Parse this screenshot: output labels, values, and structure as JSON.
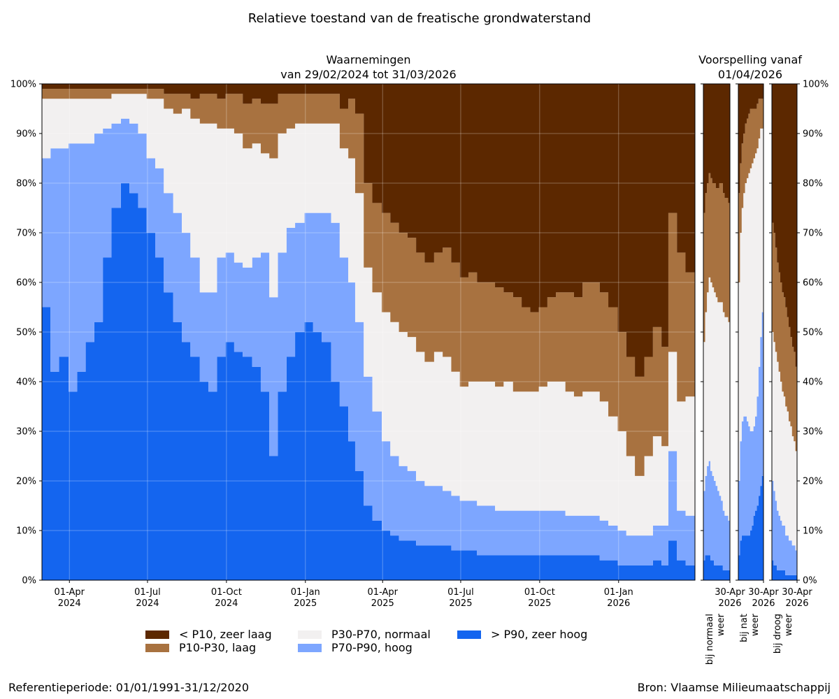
{
  "title": "Relatieve toestand van de freatische grondwaterstand",
  "colors": {
    "zeer_laag": "#5c2800",
    "laag": "#a87240",
    "normaal": "#f2f0f0",
    "hoog": "#7da6ff",
    "zeer_hoog": "#1465ef"
  },
  "chart_data": [
    {
      "type": "area",
      "title": "Waarnemingen\nvan 29/02/2024 tot 31/03/2026",
      "title_lines": [
        "Waarnemingen",
        "van 29/02/2024 tot 31/03/2026"
      ],
      "x_range": [
        "2024-02-29",
        "2026-03-31"
      ],
      "x_ticks": [
        {
          "date": "2024-04-01",
          "label": [
            "01-Apr",
            "2024"
          ]
        },
        {
          "date": "2024-07-01",
          "label": [
            "01-Jul",
            "2024"
          ]
        },
        {
          "date": "2024-10-01",
          "label": [
            "01-Oct",
            "2024"
          ]
        },
        {
          "date": "2025-01-01",
          "label": [
            "01-Jan",
            "2025"
          ]
        },
        {
          "date": "2025-04-01",
          "label": [
            "01-Apr",
            "2025"
          ]
        },
        {
          "date": "2025-07-01",
          "label": [
            "01-Jul",
            "2025"
          ]
        },
        {
          "date": "2025-10-01",
          "label": [
            "01-Oct",
            "2025"
          ]
        },
        {
          "date": "2026-01-01",
          "label": [
            "01-Jan",
            "2026"
          ]
        }
      ],
      "y_ticks": [
        "0%",
        "10%",
        "20%",
        "30%",
        "40%",
        "50%",
        "60%",
        "70%",
        "80%",
        "90%",
        "100%"
      ],
      "ylim": [
        0,
        100
      ],
      "grid": true,
      "stacked": true,
      "x": [
        "2024-02-29",
        "2024-03-10",
        "2024-03-20",
        "2024-03-31",
        "2024-04-10",
        "2024-04-20",
        "2024-04-30",
        "2024-05-10",
        "2024-05-20",
        "2024-05-31",
        "2024-06-10",
        "2024-06-20",
        "2024-06-30",
        "2024-07-10",
        "2024-07-20",
        "2024-07-31",
        "2024-08-10",
        "2024-08-20",
        "2024-08-31",
        "2024-09-10",
        "2024-09-20",
        "2024-09-30",
        "2024-10-10",
        "2024-10-20",
        "2024-10-31",
        "2024-11-10",
        "2024-11-20",
        "2024-11-30",
        "2024-12-10",
        "2024-12-20",
        "2024-12-31",
        "2025-01-10",
        "2025-01-20",
        "2025-01-31",
        "2025-02-10",
        "2025-02-20",
        "2025-02-28",
        "2025-03-10",
        "2025-03-20",
        "2025-03-31",
        "2025-04-10",
        "2025-04-20",
        "2025-04-30",
        "2025-05-10",
        "2025-05-20",
        "2025-05-31",
        "2025-06-10",
        "2025-06-20",
        "2025-06-30",
        "2025-07-10",
        "2025-07-20",
        "2025-07-31",
        "2025-08-10",
        "2025-08-20",
        "2025-08-31",
        "2025-09-10",
        "2025-09-20",
        "2025-09-30",
        "2025-10-10",
        "2025-10-20",
        "2025-10-31",
        "2025-11-10",
        "2025-11-20",
        "2025-11-30",
        "2025-12-10",
        "2025-12-20",
        "2025-12-31",
        "2026-01-10",
        "2026-01-20",
        "2026-01-31",
        "2026-02-10",
        "2026-02-20",
        "2026-02-28",
        "2026-03-10",
        "2026-03-20",
        "2026-03-31"
      ],
      "series": [
        {
          "name": "> P90, zeer hoog",
          "color_key": "zeer_hoog",
          "values": [
            55,
            42,
            45,
            38,
            42,
            48,
            52,
            65,
            75,
            80,
            78,
            75,
            70,
            65,
            58,
            52,
            48,
            45,
            40,
            38,
            45,
            48,
            46,
            45,
            43,
            38,
            25,
            38,
            45,
            50,
            52,
            50,
            48,
            40,
            35,
            28,
            22,
            15,
            12,
            10,
            9,
            8,
            8,
            7,
            7,
            7,
            7,
            6,
            6,
            6,
            5,
            5,
            5,
            5,
            5,
            5,
            5,
            5,
            5,
            5,
            5,
            5,
            5,
            5,
            4,
            4,
            3,
            3,
            3,
            3,
            4,
            3,
            8,
            4,
            3,
            3
          ]
        },
        {
          "name": "P70-P90, hoog",
          "color_key": "hoog",
          "values": [
            30,
            45,
            42,
            50,
            46,
            40,
            38,
            26,
            17,
            13,
            14,
            15,
            15,
            18,
            20,
            22,
            22,
            20,
            18,
            20,
            20,
            18,
            18,
            18,
            22,
            28,
            32,
            28,
            26,
            22,
            22,
            24,
            26,
            32,
            30,
            32,
            30,
            26,
            22,
            18,
            16,
            15,
            14,
            13,
            12,
            12,
            11,
            11,
            10,
            10,
            10,
            10,
            9,
            9,
            9,
            9,
            9,
            9,
            9,
            9,
            8,
            8,
            8,
            8,
            8,
            7,
            7,
            6,
            6,
            6,
            7,
            8,
            18,
            10,
            10,
            9
          ]
        },
        {
          "name": "P30-P70, normaal",
          "color_key": "normaal",
          "values": [
            12,
            10,
            10,
            9,
            9,
            9,
            7,
            6,
            6,
            5,
            6,
            8,
            12,
            14,
            17,
            20,
            25,
            28,
            34,
            34,
            26,
            25,
            26,
            24,
            23,
            20,
            28,
            24,
            20,
            20,
            18,
            18,
            18,
            20,
            22,
            25,
            26,
            22,
            24,
            26,
            27,
            27,
            27,
            26,
            25,
            27,
            27,
            25,
            23,
            24,
            25,
            25,
            25,
            26,
            24,
            24,
            24,
            25,
            26,
            26,
            25,
            24,
            25,
            25,
            24,
            22,
            20,
            16,
            12,
            16,
            18,
            16,
            20,
            22,
            24,
            28
          ]
        },
        {
          "name": "P10-P30, laag",
          "color_key": "laag",
          "values": [
            2,
            2,
            2,
            2,
            2,
            2,
            2,
            2,
            1,
            1,
            1,
            1,
            2,
            2,
            3,
            4,
            3,
            4,
            6,
            6,
            6,
            7,
            8,
            9,
            9,
            10,
            11,
            8,
            7,
            6,
            6,
            6,
            6,
            6,
            8,
            12,
            16,
            17,
            18,
            20,
            20,
            20,
            20,
            20,
            20,
            20,
            22,
            22,
            22,
            22,
            20,
            20,
            20,
            18,
            19,
            17,
            16,
            16,
            17,
            18,
            20,
            20,
            22,
            22,
            22,
            22,
            20,
            20,
            20,
            20,
            22,
            20,
            28,
            30,
            25,
            18
          ]
        },
        {
          "name": "< P10, zeer laag",
          "color_key": "zeer_laag",
          "values": [
            1,
            1,
            1,
            1,
            1,
            1,
            1,
            1,
            1,
            1,
            1,
            1,
            1,
            1,
            2,
            2,
            2,
            3,
            2,
            2,
            3,
            2,
            2,
            4,
            3,
            4,
            4,
            2,
            2,
            2,
            2,
            2,
            2,
            2,
            5,
            3,
            6,
            20,
            24,
            26,
            28,
            30,
            31,
            34,
            36,
            34,
            33,
            36,
            39,
            38,
            40,
            40,
            41,
            42,
            43,
            45,
            46,
            45,
            43,
            42,
            42,
            43,
            40,
            40,
            42,
            45,
            50,
            55,
            59,
            55,
            49,
            53,
            26,
            34,
            38,
            42
          ]
        }
      ]
    },
    {
      "type": "area",
      "title": "Voorspelling vanaf\n01/04/2026",
      "title_lines": [
        "Voorspelling vanaf",
        "01/04/2026"
      ],
      "x_tick_label": [
        "30-Apr",
        "2026"
      ],
      "ylim": [
        0,
        100
      ],
      "stacked": true,
      "scenarios": [
        {
          "name": "bij normaal weer",
          "name_lines": [
            "bij normaal",
            "weer"
          ],
          "x_days": [
            0,
            2,
            4,
            6,
            8,
            10,
            12,
            14,
            16,
            18,
            20,
            22,
            24,
            26,
            28,
            30
          ],
          "series": [
            {
              "name": "> P90, zeer hoog",
              "color_key": "zeer_hoog",
              "values": [
                4,
                5,
                5,
                5,
                4,
                4,
                3,
                3,
                3,
                3,
                3,
                2,
                2,
                2,
                2,
                1
              ]
            },
            {
              "name": "P70-P90, hoog",
              "color_key": "hoog",
              "values": [
                14,
                16,
                18,
                19,
                18,
                17,
                17,
                16,
                15,
                14,
                13,
                12,
                11,
                11,
                10,
                10
              ]
            },
            {
              "name": "P30-P70, normaal",
              "color_key": "normaal",
              "values": [
                30,
                33,
                35,
                37,
                38,
                38,
                38,
                38,
                38,
                39,
                40,
                40,
                40,
                40,
                40,
                40
              ]
            },
            {
              "name": "P10-P30, laag",
              "color_key": "laag",
              "values": [
                26,
                24,
                22,
                21,
                21,
                21,
                22,
                22,
                23,
                24,
                24,
                24,
                24,
                24,
                24,
                24
              ]
            },
            {
              "name": "< P10, zeer laag",
              "color_key": "zeer_laag",
              "values": [
                26,
                22,
                20,
                18,
                19,
                20,
                20,
                21,
                21,
                20,
                20,
                22,
                23,
                23,
                24,
                25
              ]
            }
          ]
        },
        {
          "name": "bij nat weer",
          "name_lines": [
            "bij nat",
            "weer"
          ],
          "x_days": [
            0,
            2,
            4,
            6,
            8,
            10,
            12,
            14,
            16,
            18,
            20,
            22,
            24,
            26,
            28,
            30
          ],
          "series": [
            {
              "name": "> P90, zeer hoog",
              "color_key": "zeer_hoog",
              "values": [
                5,
                8,
                9,
                9,
                9,
                9,
                9,
                10,
                11,
                13,
                14,
                15,
                17,
                19,
                21,
                24
              ]
            },
            {
              "name": "P70-P90, hoog",
              "color_key": "hoog",
              "values": [
                15,
                20,
                23,
                24,
                24,
                23,
                22,
                20,
                19,
                18,
                19,
                22,
                26,
                30,
                33,
                32
              ]
            },
            {
              "name": "P30-P70, normaal",
              "color_key": "normaal",
              "values": [
                40,
                42,
                43,
                45,
                47,
                49,
                51,
                53,
                54,
                54,
                53,
                50,
                46,
                42,
                37,
                36
              ]
            },
            {
              "name": "P10-P30, laag",
              "color_key": "laag",
              "values": [
                18,
                14,
                13,
                12,
                12,
                12,
                12,
                12,
                11,
                10,
                9,
                9,
                8,
                6,
                6,
                5
              ]
            },
            {
              "name": "< P10, zeer laag",
              "color_key": "zeer_laag",
              "values": [
                22,
                16,
                12,
                10,
                8,
                7,
                6,
                5,
                5,
                5,
                5,
                4,
                3,
                3,
                3,
                3
              ]
            }
          ]
        },
        {
          "name": "bij droog weer",
          "name_lines": [
            "bij droog",
            "weer"
          ],
          "x_days": [
            0,
            2,
            4,
            6,
            8,
            10,
            12,
            14,
            16,
            18,
            20,
            22,
            24,
            26,
            28,
            30
          ],
          "series": [
            {
              "name": "> P90, zeer hoog",
              "color_key": "zeer_hoog",
              "values": [
                4,
                3,
                3,
                2,
                2,
                2,
                2,
                2,
                1,
                1,
                1,
                1,
                1,
                1,
                1,
                1
              ]
            },
            {
              "name": "P70-P90, hoog",
              "color_key": "hoog",
              "values": [
                16,
                15,
                13,
                12,
                11,
                10,
                9,
                9,
                8,
                8,
                7,
                7,
                6,
                6,
                5,
                5
              ]
            },
            {
              "name": "P30-P70, normaal",
              "color_key": "normaal",
              "values": [
                30,
                30,
                30,
                30,
                29,
                28,
                27,
                26,
                26,
                25,
                24,
                23,
                22,
                21,
                20,
                20
              ]
            },
            {
              "name": "P10-P30, laag",
              "color_key": "laag",
              "values": [
                22,
                22,
                21,
                20,
                20,
                20,
                20,
                20,
                20,
                19,
                19,
                18,
                18,
                18,
                17,
                17
              ]
            },
            {
              "name": "< P10, zeer laag",
              "color_key": "zeer_laag",
              "values": [
                28,
                30,
                33,
                36,
                38,
                40,
                42,
                43,
                45,
                47,
                49,
                51,
                53,
                54,
                57,
                57
              ]
            }
          ]
        }
      ]
    }
  ],
  "legend": {
    "placement": "bottom",
    "items": [
      {
        "label": "< P10, zeer laag",
        "color_key": "zeer_laag"
      },
      {
        "label": "P10-P30, laag",
        "color_key": "laag"
      },
      {
        "label": "P30-P70, normaal",
        "color_key": "normaal"
      },
      {
        "label": "P70-P90, hoog",
        "color_key": "hoog"
      },
      {
        "label": "> P90, zeer hoog",
        "color_key": "zeer_hoog"
      }
    ]
  },
  "footer": {
    "reference": "Referentieperiode: 01/01/1991-31/12/2020",
    "source": "Bron: Vlaamse Milieumaatschappij"
  }
}
